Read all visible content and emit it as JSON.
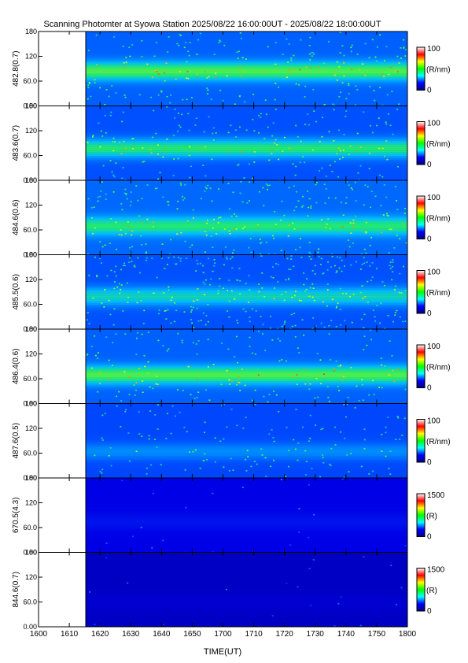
{
  "chart_data": {
    "type": "heatmap",
    "title": "Scanning Photomter at Syowa Station 2025/08/22 16:00:00UT - 2025/08/22 18:00:00UT",
    "xlabel": "TIME(UT)",
    "x_ticks": [
      "1600",
      "1610",
      "1620",
      "1630",
      "1640",
      "1650",
      "1700",
      "1710",
      "1720",
      "1730",
      "1740",
      "1750",
      "1800"
    ],
    "data_start_label": "1615",
    "y_ticks": [
      "0.00",
      "60.0",
      "120",
      "180"
    ],
    "ylim": [
      0,
      180
    ],
    "colorscale": [
      "#000080",
      "#0000ff",
      "#00ffff",
      "#00ff00",
      "#ffff00",
      "#ff0000",
      "#ffffff"
    ],
    "panels": [
      {
        "ylabel": "482.8(0.7)",
        "cbar_max": "100",
        "cbar_min": "0",
        "cbar_unit": "(R/nm)",
        "base_level": 0.32,
        "band_center": 85,
        "band_level": 0.5,
        "speckle": 0.5
      },
      {
        "ylabel": "483.6(0.7)",
        "cbar_max": "100",
        "cbar_min": "0",
        "cbar_unit": "(R/nm)",
        "base_level": 0.3,
        "band_center": 78,
        "band_level": 0.45,
        "speckle": 0.45
      },
      {
        "ylabel": "484.6(0.6)",
        "cbar_max": "100",
        "cbar_min": "0",
        "cbar_unit": "(R/nm)",
        "base_level": 0.33,
        "band_center": 70,
        "band_level": 0.4,
        "speckle": 0.6
      },
      {
        "ylabel": "485.5(0.6)",
        "cbar_max": "100",
        "cbar_min": "0",
        "cbar_unit": "(R/nm)",
        "base_level": 0.3,
        "band_center": 80,
        "band_level": 0.35,
        "speckle": 0.75
      },
      {
        "ylabel": "486.4(0.6)",
        "cbar_max": "100",
        "cbar_min": "0",
        "cbar_unit": "(R/nm)",
        "base_level": 0.32,
        "band_center": 70,
        "band_level": 0.5,
        "speckle": 0.4
      },
      {
        "ylabel": "487.6(0.5)",
        "cbar_max": "100",
        "cbar_min": "0",
        "cbar_unit": "(R/nm)",
        "base_level": 0.28,
        "band_center": 65,
        "band_level": 0.18,
        "speckle": 0.35
      },
      {
        "ylabel": "670.5(4.3)",
        "cbar_max": "1500",
        "cbar_min": "0",
        "cbar_unit": "(R)",
        "base_level": 0.12,
        "band_center": 75,
        "band_level": 0.08,
        "speckle": 0.05
      },
      {
        "ylabel": "844.6(0.7)",
        "cbar_max": "1500",
        "cbar_min": "0",
        "cbar_unit": "(R)",
        "base_level": 0.08,
        "band_center": 60,
        "band_level": 0.03,
        "speckle": 0.05
      }
    ]
  }
}
